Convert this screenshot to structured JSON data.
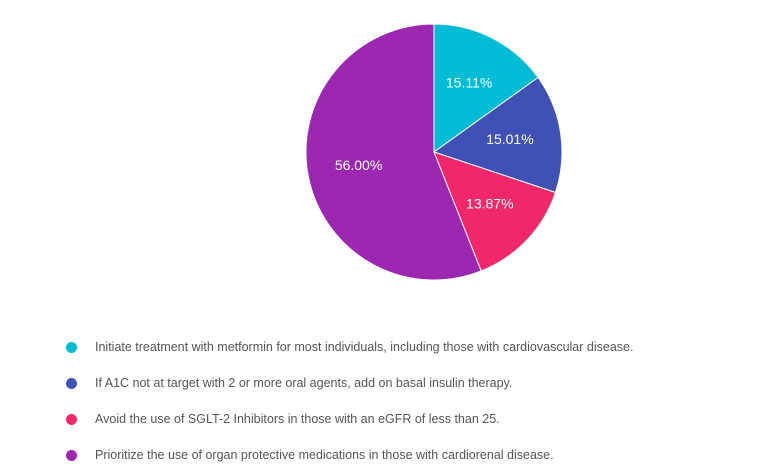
{
  "chart_data": {
    "type": "pie",
    "title": "",
    "slices": [
      {
        "label": "Initiate treatment with metformin for most individuals, including those with cardiovascular disease.",
        "value": 15.11,
        "display": "15.11%",
        "color": "#00bcd4"
      },
      {
        "label": "If A1C not at target with 2 or more oral agents, add on basal insulin therapy.",
        "value": 15.01,
        "display": "15.01%",
        "color": "#3f51b5"
      },
      {
        "label": "Avoid the use of SGLT-2 Inhibitors in those with an eGFR of less than 25.",
        "value": 13.87,
        "display": "13.87%",
        "color": "#f0286a"
      },
      {
        "label": "Prioritize the use of organ protective medications in those with cardiorenal disease.",
        "value": 56.0,
        "display": "56.00%",
        "color": "#9c27b0"
      }
    ],
    "start_angle": "12 o'clock",
    "direction": "clockwise",
    "legend_position": "bottom"
  }
}
